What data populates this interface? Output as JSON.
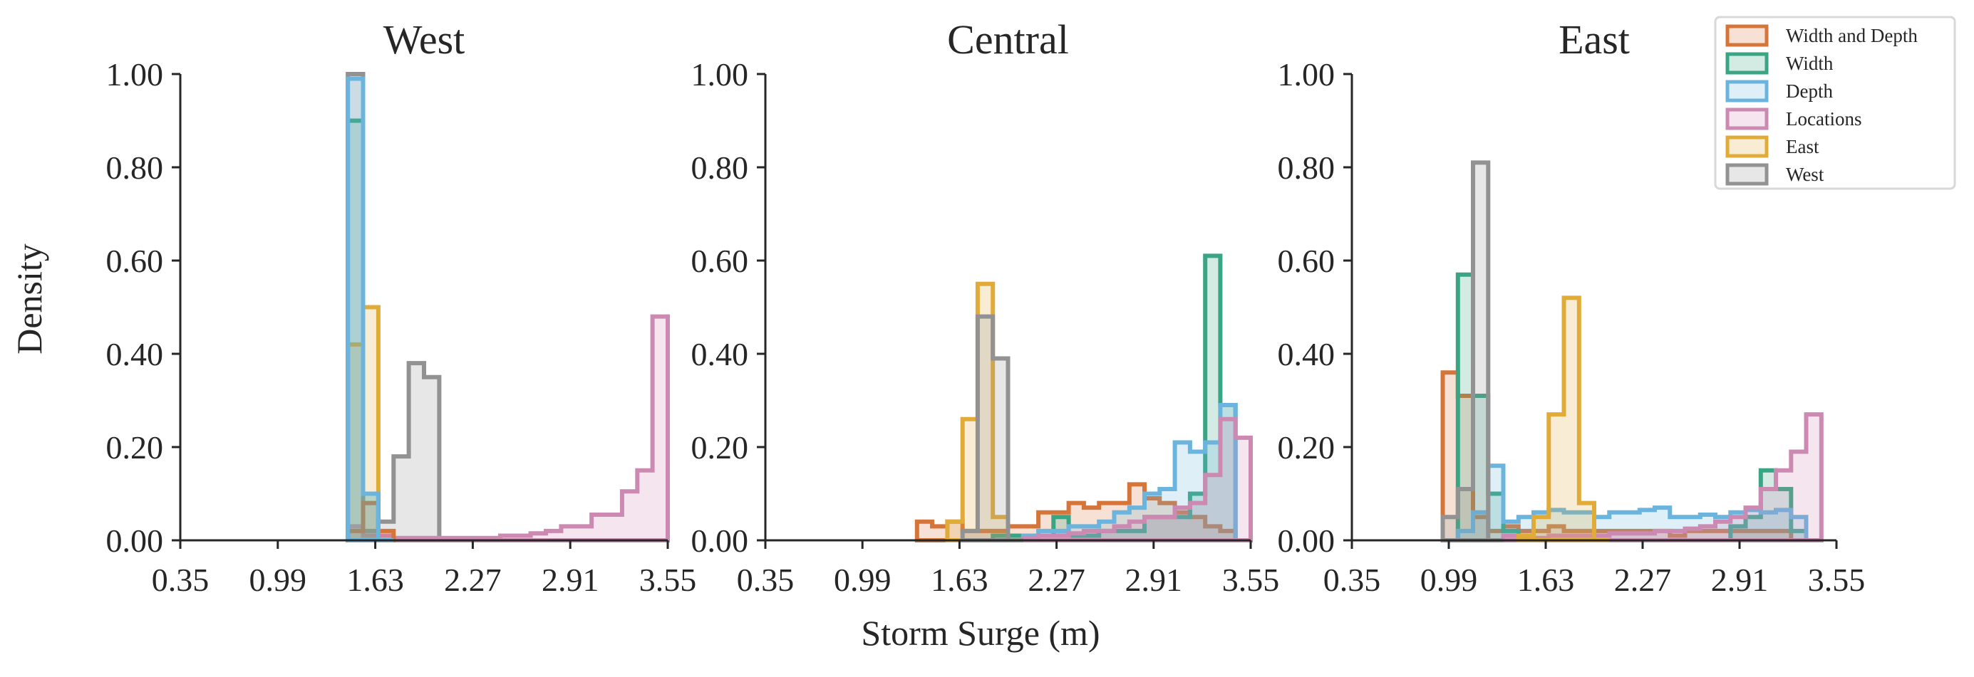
{
  "chart_data": {
    "type": "histogram",
    "xlabel": "Storm Surge (m)",
    "ylabel": "Density",
    "xlim": [
      0.35,
      3.55
    ],
    "ylim": [
      0,
      1.0
    ],
    "xticks": [
      "0.35",
      "0.99",
      "1.63",
      "2.27",
      "2.91",
      "3.55"
    ],
    "yticks": [
      "0.00",
      "0.20",
      "0.40",
      "0.60",
      "0.80",
      "1.00"
    ],
    "bin_width": 0.1,
    "legend": {
      "placement": "top-right",
      "entries": [
        {
          "label": "Width and Depth",
          "color": "#d5753a"
        },
        {
          "label": "Width",
          "color": "#3aa585"
        },
        {
          "label": "Depth",
          "color": "#6ab4de"
        },
        {
          "label": "Locations",
          "color": "#cc89b1"
        },
        {
          "label": "East",
          "color": "#e1ab3a"
        },
        {
          "label": "West",
          "color": "#929292"
        }
      ]
    },
    "panels": [
      {
        "title": "West",
        "series": [
          {
            "name": "West",
            "edges": [
              1.45,
              1.55,
              1.65,
              1.75,
              1.85,
              1.95,
              2.05,
              2.15
            ],
            "values": [
              1.0,
              0.02,
              0.04,
              0.18,
              0.38,
              0.35,
              0.0
            ]
          },
          {
            "name": "Locations",
            "edges": [
              1.45,
              1.55,
              1.65,
              1.75,
              1.85,
              1.95,
              2.05,
              2.15,
              2.25,
              2.35,
              2.45,
              2.55,
              2.65,
              2.75,
              2.85,
              2.95,
              3.05,
              3.15,
              3.25,
              3.35,
              3.45,
              3.55
            ],
            "values": [
              0.03,
              0.01,
              0.01,
              0.005,
              0.005,
              0.005,
              0.005,
              0.005,
              0.005,
              0.005,
              0.01,
              0.01,
              0.015,
              0.02,
              0.03,
              0.03,
              0.055,
              0.055,
              0.105,
              0.15,
              0.48
            ]
          },
          {
            "name": "East",
            "edges": [
              1.45,
              1.55,
              1.65
            ],
            "values": [
              0.42,
              0.5
            ]
          },
          {
            "name": "Width and Depth",
            "edges": [
              1.45,
              1.55,
              1.65,
              1.75
            ],
            "values": [
              0.02,
              0.08,
              0.02
            ]
          },
          {
            "name": "Width",
            "edges": [
              1.45,
              1.55,
              1.65,
              1.75
            ],
            "values": [
              0.9,
              0.1,
              0.0
            ]
          },
          {
            "name": "Depth",
            "edges": [
              1.45,
              1.55,
              1.65,
              1.75
            ],
            "values": [
              0.99,
              0.1,
              0.0
            ]
          }
        ]
      },
      {
        "title": "Central",
        "series": [
          {
            "name": "Width and Depth",
            "edges": [
              1.35,
              1.45,
              1.55,
              1.65,
              1.75,
              1.85,
              1.95,
              2.05,
              2.15,
              2.25,
              2.35,
              2.45,
              2.55,
              2.65,
              2.75,
              2.85,
              2.95,
              3.05,
              3.15,
              3.25,
              3.35,
              3.45
            ],
            "values": [
              0.04,
              0.03,
              0.04,
              0.02,
              0.02,
              0.02,
              0.03,
              0.03,
              0.06,
              0.06,
              0.08,
              0.07,
              0.08,
              0.08,
              0.12,
              0.09,
              0.08,
              0.06,
              0.05,
              0.03,
              0.02
            ]
          },
          {
            "name": "Width",
            "edges": [
              1.85,
              1.95,
              2.05,
              2.15,
              2.25,
              2.35,
              2.45,
              2.55,
              2.65,
              2.75,
              2.85,
              2.95,
              3.05,
              3.15,
              3.25,
              3.35,
              3.45
            ],
            "values": [
              0.01,
              0.01,
              0.01,
              0.01,
              0.05,
              0.01,
              0.01,
              0.02,
              0.02,
              0.02,
              0.05,
              0.05,
              0.05,
              0.1,
              0.61,
              0.29
            ]
          },
          {
            "name": "Depth",
            "edges": [
              2.05,
              2.15,
              2.25,
              2.35,
              2.45,
              2.55,
              2.65,
              2.75,
              2.85,
              2.95,
              3.05,
              3.15,
              3.25,
              3.35,
              3.45
            ],
            "values": [
              0.01,
              0.02,
              0.02,
              0.03,
              0.03,
              0.04,
              0.06,
              0.07,
              0.1,
              0.11,
              0.21,
              0.19,
              0.21,
              0.29
            ]
          },
          {
            "name": "Locations",
            "edges": [
              2.05,
              2.15,
              2.25,
              2.35,
              2.45,
              2.55,
              2.65,
              2.75,
              2.85,
              2.95,
              3.05,
              3.15,
              3.25,
              3.35,
              3.45,
              3.55
            ],
            "values": [
              0.005,
              0.01,
              0.01,
              0.015,
              0.02,
              0.02,
              0.03,
              0.04,
              0.05,
              0.05,
              0.07,
              0.08,
              0.14,
              0.26,
              0.22
            ]
          },
          {
            "name": "East",
            "edges": [
              1.55,
              1.65,
              1.75,
              1.85,
              1.95,
              2.05
            ],
            "values": [
              0.04,
              0.26,
              0.55,
              0.05,
              0.0
            ]
          },
          {
            "name": "West",
            "edges": [
              1.65,
              1.75,
              1.85,
              1.95,
              2.05
            ],
            "values": [
              0.02,
              0.48,
              0.39,
              0.0
            ]
          }
        ]
      },
      {
        "title": "East",
        "series": [
          {
            "name": "Width and Depth",
            "edges": [
              0.95,
              1.05,
              1.15,
              1.25,
              1.35,
              1.45,
              1.55,
              1.65,
              1.75,
              1.85,
              1.95,
              2.05,
              2.15,
              2.25,
              2.35,
              2.45,
              2.55,
              2.65,
              2.75,
              2.85,
              2.95,
              3.05,
              3.15,
              3.25
            ],
            "values": [
              0.36,
              0.31,
              0.05,
              0.02,
              0.03,
              0.02,
              0.02,
              0.03,
              0.02,
              0.02,
              0.02,
              0.02,
              0.02,
              0.02,
              0.02,
              0.01,
              0.02,
              0.02,
              0.02,
              0.02,
              0.02,
              0.02,
              0.02
            ]
          },
          {
            "name": "Width",
            "edges": [
              1.05,
              1.15,
              1.25,
              1.35,
              1.45,
              2.75,
              2.85,
              2.95,
              3.05,
              3.15,
              3.25,
              3.35
            ],
            "values": [
              0.57,
              0.31,
              0.1,
              0.02,
              0.0,
              0.0,
              0.03,
              0.05,
              0.15,
              0.11,
              0.02
            ]
          },
          {
            "name": "Depth",
            "edges": [
              1.05,
              1.15,
              1.25,
              1.35,
              1.45,
              1.55,
              1.65,
              1.75,
              1.85,
              1.95,
              2.05,
              2.15,
              2.25,
              2.35,
              2.45,
              2.55,
              2.65,
              2.75,
              2.85,
              2.95,
              3.05,
              3.15,
              3.25,
              3.35
            ],
            "values": [
              0.02,
              0.06,
              0.16,
              0.04,
              0.05,
              0.06,
              0.065,
              0.06,
              0.06,
              0.05,
              0.06,
              0.06,
              0.065,
              0.07,
              0.05,
              0.05,
              0.055,
              0.05,
              0.06,
              0.065,
              0.06,
              0.065,
              0.05
            ]
          },
          {
            "name": "Locations",
            "edges": [
              1.35,
              1.45,
              1.55,
              1.65,
              1.75,
              1.85,
              1.95,
              2.05,
              2.15,
              2.25,
              2.35,
              2.45,
              2.55,
              2.65,
              2.75,
              2.85,
              2.95,
              3.05,
              3.15,
              3.25,
              3.35,
              3.45
            ],
            "values": [
              0.01,
              0.005,
              0.005,
              0.01,
              0.01,
              0.01,
              0.01,
              0.015,
              0.015,
              0.015,
              0.02,
              0.02,
              0.025,
              0.03,
              0.04,
              0.05,
              0.07,
              0.11,
              0.15,
              0.19,
              0.27
            ]
          },
          {
            "name": "East",
            "edges": [
              1.45,
              1.55,
              1.65,
              1.75,
              1.85,
              1.95,
              2.05
            ],
            "values": [
              0.01,
              0.05,
              0.27,
              0.52,
              0.08,
              0.0
            ]
          },
          {
            "name": "West",
            "edges": [
              0.95,
              1.05,
              1.15,
              1.25,
              1.35
            ],
            "values": [
              0.05,
              0.11,
              0.81,
              0.0
            ]
          }
        ]
      }
    ]
  }
}
